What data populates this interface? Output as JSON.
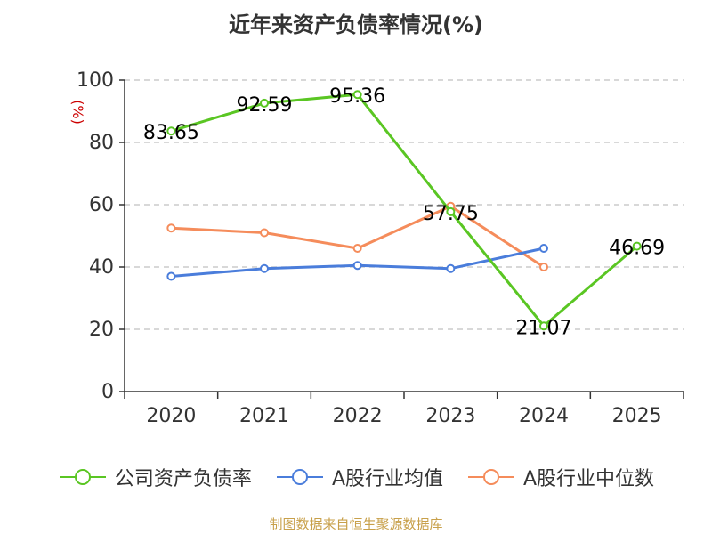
{
  "title": "近年来资产负债率情况(%)",
  "source": "制图数据来自恒生聚源数据库",
  "colors": {
    "company": "#5ac623",
    "avg": "#4a7ddb",
    "median": "#f58c5b",
    "axis": "#333333",
    "grid": "#cccccc",
    "unit": "#cc0000"
  },
  "chart_data": {
    "type": "line",
    "title": "近年来资产负债率情况(%)",
    "ylabel": "(%)",
    "xlabel": "",
    "ylim": [
      0,
      100
    ],
    "yticks": [
      0,
      20,
      40,
      60,
      80,
      100
    ],
    "categories": [
      "2020",
      "2021",
      "2022",
      "2023",
      "2024",
      "2025"
    ],
    "grid": "horizontal dashed",
    "legend_position": "bottom",
    "series": [
      {
        "name": "公司资产负债率",
        "color": "#5ac623",
        "values": [
          83.65,
          92.59,
          95.36,
          57.75,
          21.07,
          46.69
        ],
        "labels": [
          "83.65",
          "92.59",
          "95.36",
          "57.75",
          "21.07",
          "46.69"
        ]
      },
      {
        "name": "A股行业均值",
        "color": "#4a7ddb",
        "values": [
          37,
          39.5,
          40.5,
          39.5,
          46,
          null
        ]
      },
      {
        "name": "A股行业中位数",
        "color": "#f58c5b",
        "values": [
          52.5,
          51,
          46,
          59.5,
          40,
          null
        ]
      }
    ]
  }
}
